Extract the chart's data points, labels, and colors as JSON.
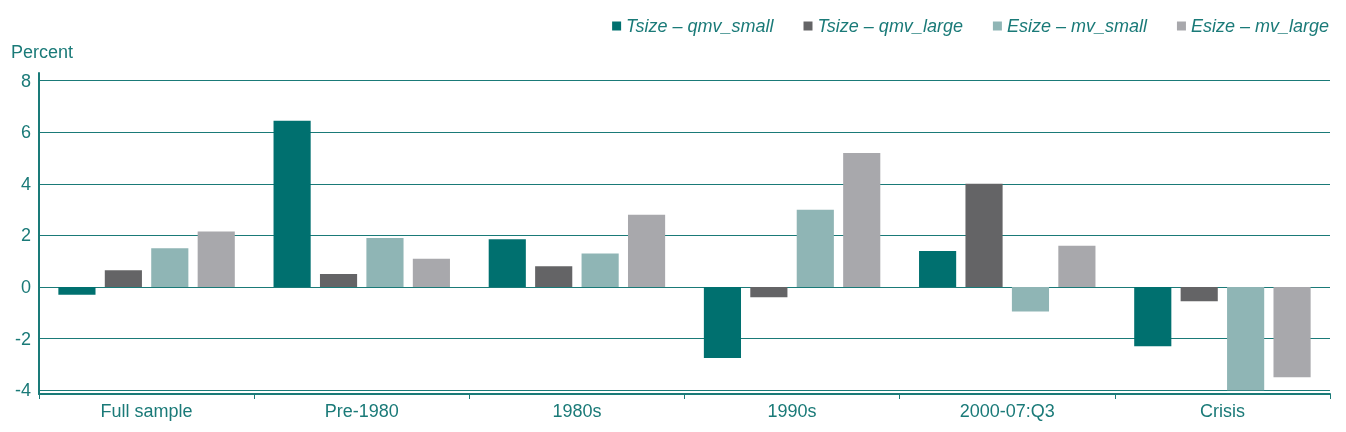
{
  "chart_data": {
    "type": "bar",
    "ylabel": "Percent",
    "categories": [
      "Full sample",
      "Pre-1980",
      "1980s",
      "1990s",
      "2000-07:Q3",
      "Crisis"
    ],
    "series": [
      {
        "name": "Tsize – qmv_small",
        "color": "#00706f",
        "values": [
          -0.3,
          6.45,
          1.85,
          -2.75,
          1.4,
          -2.3
        ]
      },
      {
        "name": "Tsize – qmv_large",
        "color": "#646466",
        "values": [
          0.65,
          0.5,
          0.8,
          -0.4,
          4.0,
          -0.55
        ]
      },
      {
        "name": "Esize – mv_small",
        "color": "#8fb5b5",
        "values": [
          1.5,
          1.9,
          1.3,
          3.0,
          -0.95,
          -4.0
        ]
      },
      {
        "name": "Esize – mv_large",
        "color": "#a8a8ac",
        "values": [
          2.15,
          1.1,
          2.8,
          5.2,
          1.6,
          -3.5
        ]
      }
    ],
    "ylim": [
      -4.15,
      8.3
    ],
    "yticks": [
      -4,
      -2,
      0,
      2,
      4,
      6,
      8
    ],
    "grid": "y",
    "legend": "top right"
  }
}
